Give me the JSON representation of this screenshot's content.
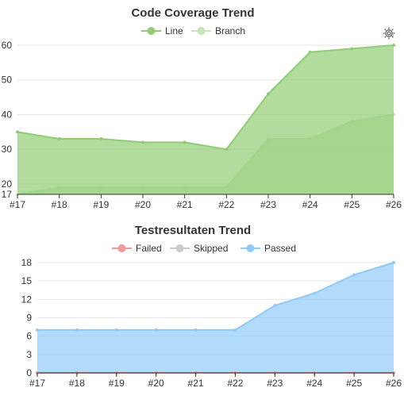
{
  "chart_data": [
    {
      "type": "area",
      "title": "Code Coverage Trend",
      "categories": [
        "#17",
        "#18",
        "#19",
        "#20",
        "#21",
        "#22",
        "#23",
        "#24",
        "#25",
        "#26"
      ],
      "series": [
        {
          "name": "Line",
          "values": [
            35,
            33,
            33,
            32,
            32,
            30,
            46,
            58,
            59,
            60
          ]
        },
        {
          "name": "Branch",
          "values": [
            17,
            19,
            19,
            19,
            19,
            19,
            33,
            33,
            38,
            40
          ]
        }
      ],
      "yticks": [
        17,
        20,
        30,
        40,
        50,
        60
      ],
      "ylim": [
        17,
        60
      ],
      "colors": {
        "Line": "#91cc75",
        "Branch": "#c4e6b4"
      },
      "grid": true,
      "legend": "top-center",
      "toolbox": "gear-icon"
    },
    {
      "type": "area",
      "title": "Testresultaten Trend",
      "categories": [
        "#17",
        "#18",
        "#19",
        "#20",
        "#21",
        "#22",
        "#23",
        "#24",
        "#25",
        "#26"
      ],
      "series": [
        {
          "name": "Failed",
          "values": [
            0,
            0,
            0,
            0,
            0,
            0,
            0,
            0,
            0,
            0
          ]
        },
        {
          "name": "Skipped",
          "values": [
            0,
            0,
            0,
            0,
            0,
            0,
            0,
            0,
            0,
            0
          ]
        },
        {
          "name": "Passed",
          "values": [
            7,
            7,
            7,
            7,
            7,
            7,
            11,
            13,
            16,
            18
          ]
        }
      ],
      "yticks": [
        0,
        3,
        6,
        9,
        12,
        15,
        18
      ],
      "ylim": [
        0,
        18
      ],
      "colors": {
        "Failed": "#ef9a9a",
        "Skipped": "#cccccc",
        "Passed": "#90caf9"
      },
      "grid": true,
      "legend": "top-center"
    }
  ]
}
